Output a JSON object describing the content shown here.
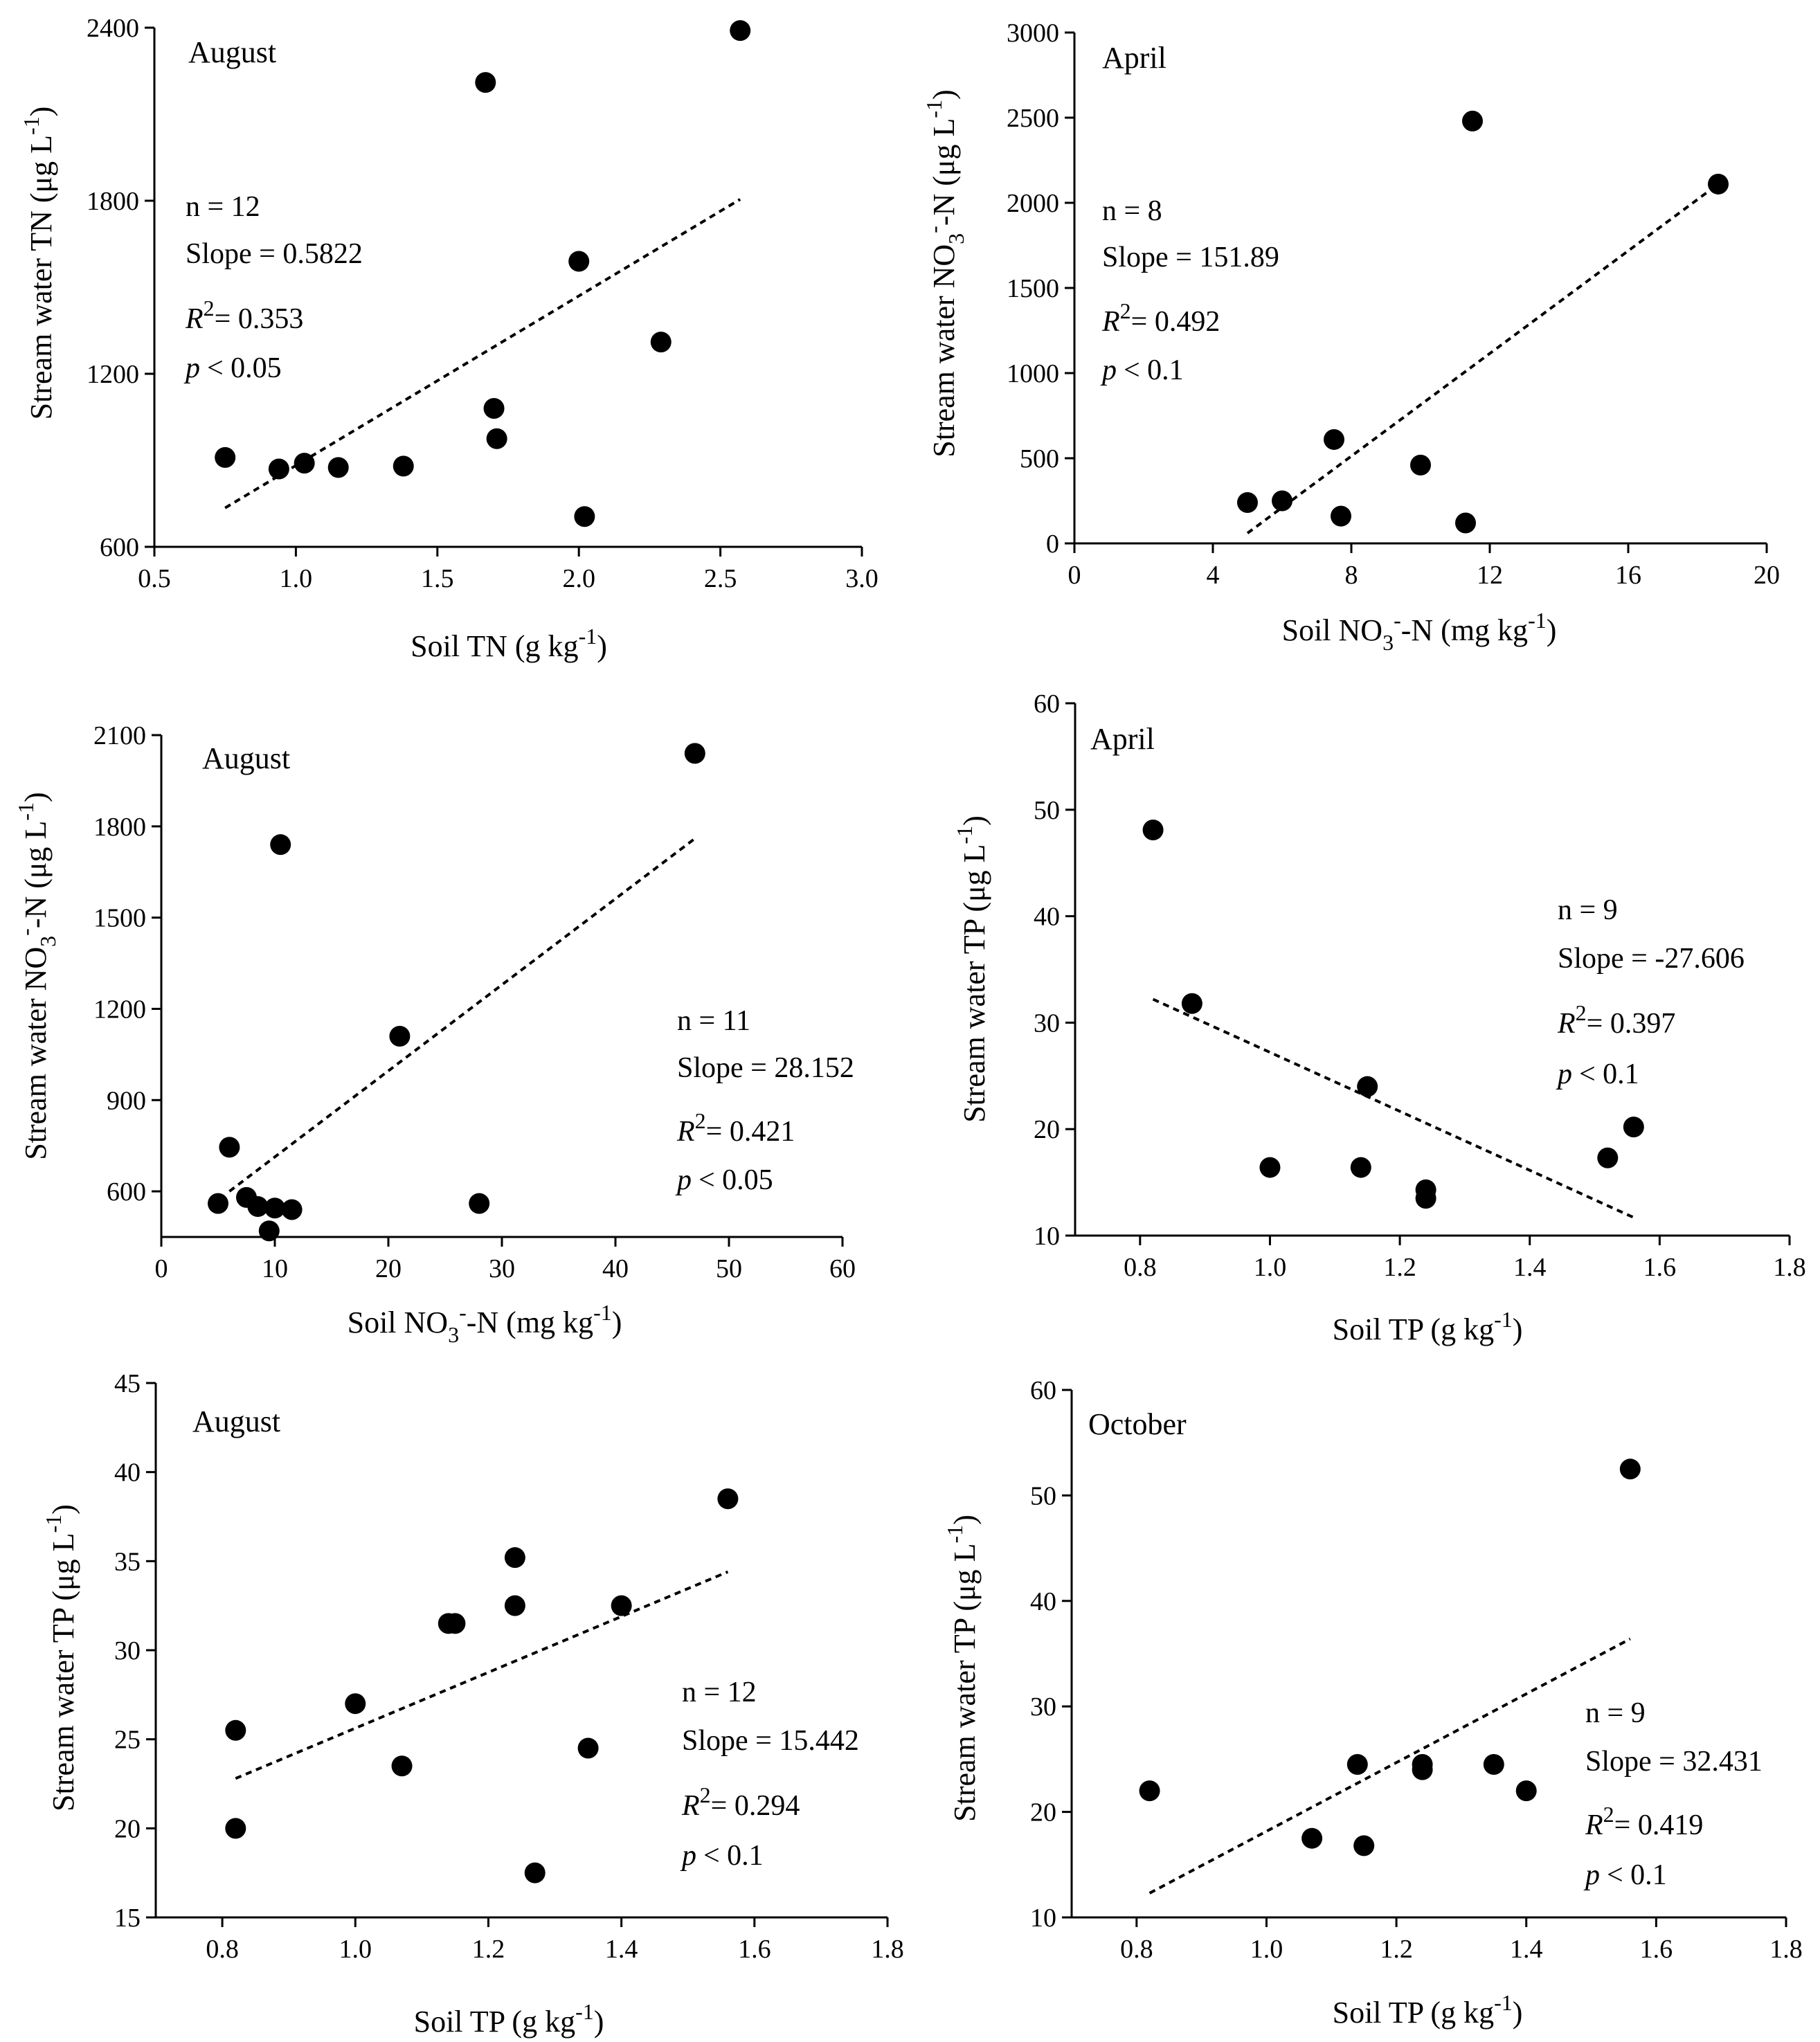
{
  "chart_data": [
    {
      "type": "scatter",
      "month": "August",
      "xlabel": "Soil TN (g kg",
      "ylabel": "Stream water TN (μg L",
      "xlim": [
        0.5,
        3.0
      ],
      "ylim": [
        600,
        2400
      ],
      "xticks": [
        "0.5",
        "1.0",
        "1.5",
        "2.0",
        "2.5",
        "3.0"
      ],
      "yticks": [
        "600",
        "1200",
        "1800",
        "2400"
      ],
      "points": [
        [
          0.75,
          910
        ],
        [
          0.94,
          870
        ],
        [
          1.03,
          890
        ],
        [
          1.15,
          875
        ],
        [
          1.38,
          880
        ],
        [
          1.67,
          2210
        ],
        [
          1.7,
          1080
        ],
        [
          1.71,
          975
        ],
        [
          2.0,
          1590
        ],
        [
          2.02,
          705
        ],
        [
          2.29,
          1310
        ],
        [
          2.57,
          2390
        ]
      ],
      "fit_line": [
        [
          0.75,
          735
        ],
        [
          2.57,
          1805
        ]
      ],
      "stats": {
        "n": "n = 12",
        "slope": "Slope = 0.5822",
        "r2": "= 0.353",
        "p": "< 0.05"
      }
    },
    {
      "type": "scatter",
      "month": "April",
      "xlabel": "Soil NO",
      "ylabel": "Stream water NO",
      "xlim": [
        0,
        20
      ],
      "ylim": [
        0,
        3000
      ],
      "xticks": [
        "0",
        "4",
        "8",
        "12",
        "16",
        "20"
      ],
      "yticks": [
        "0",
        "500",
        "1000",
        "1500",
        "2000",
        "2500",
        "3000"
      ],
      "points": [
        [
          5.0,
          240
        ],
        [
          6.0,
          250
        ],
        [
          7.5,
          610
        ],
        [
          7.7,
          160
        ],
        [
          10.0,
          460
        ],
        [
          11.3,
          120
        ],
        [
          11.5,
          2480
        ],
        [
          18.6,
          2110
        ]
      ],
      "fit_line": [
        [
          5.0,
          60
        ],
        [
          18.6,
          2110
        ]
      ],
      "stats": {
        "n": "n = 8",
        "slope": "Slope = 151.89",
        "r2": "= 0.492",
        "p": "< 0.1"
      }
    },
    {
      "type": "scatter",
      "month": "August",
      "xlabel": "Soil NO",
      "ylabel": "Stream water NO",
      "xlim": [
        0,
        60
      ],
      "ylim": [
        450,
        2100
      ],
      "xticks": [
        "0",
        "10",
        "20",
        "30",
        "40",
        "50",
        "60"
      ],
      "yticks": [
        "600",
        "900",
        "1200",
        "1500",
        "1800",
        "2100"
      ],
      "points": [
        [
          5,
          560
        ],
        [
          6,
          745
        ],
        [
          7.5,
          580
        ],
        [
          8.5,
          550
        ],
        [
          9.5,
          470
        ],
        [
          10,
          545
        ],
        [
          10.5,
          1740
        ],
        [
          11.5,
          540
        ],
        [
          21,
          1110
        ],
        [
          28,
          560
        ],
        [
          47,
          2040
        ]
      ],
      "fit_line": [
        [
          6,
          600
        ],
        [
          47,
          1760
        ]
      ],
      "stats": {
        "n": "n = 11",
        "slope": "Slope = 28.152",
        "r2": "= 0.421",
        "p": "< 0.05"
      }
    },
    {
      "type": "scatter",
      "month": "April",
      "xlabel": "Soil TP (g kg",
      "ylabel": "Stream water TP (μg L",
      "xlim": [
        0.7,
        1.8
      ],
      "ylim": [
        10,
        60
      ],
      "xticks": [
        "0.8",
        "1.0",
        "1.2",
        "1.4",
        "1.6",
        "1.8"
      ],
      "yticks": [
        "10",
        "20",
        "30",
        "40",
        "50",
        "60"
      ],
      "points": [
        [
          0.82,
          48.1
        ],
        [
          0.88,
          31.8
        ],
        [
          1.0,
          16.4
        ],
        [
          1.14,
          16.4
        ],
        [
          1.15,
          24.0
        ],
        [
          1.24,
          14.3
        ],
        [
          1.24,
          13.5
        ],
        [
          1.52,
          17.3
        ],
        [
          1.56,
          20.2
        ]
      ],
      "fit_line": [
        [
          0.82,
          32.2
        ],
        [
          1.56,
          11.7
        ]
      ],
      "stats": {
        "n": "n = 9",
        "slope": "Slope = -27.606",
        "r2": "= 0.397",
        "p": "< 0.1"
      }
    },
    {
      "type": "scatter",
      "month": "August",
      "xlabel": "Soil TP (g kg",
      "ylabel": "Stream water TP (μg L",
      "xlim": [
        0.7,
        1.8
      ],
      "ylim": [
        15,
        45
      ],
      "xticks": [
        "0.8",
        "1.0",
        "1.2",
        "1.4",
        "1.6",
        "1.8"
      ],
      "yticks": [
        "15",
        "20",
        "25",
        "30",
        "35",
        "40",
        "45"
      ],
      "points": [
        [
          0.82,
          25.5
        ],
        [
          0.82,
          20.0
        ],
        [
          1.0,
          27.0
        ],
        [
          1.07,
          23.5
        ],
        [
          1.14,
          31.5
        ],
        [
          1.15,
          31.5
        ],
        [
          1.24,
          35.2
        ],
        [
          1.24,
          32.5
        ],
        [
          1.27,
          17.5
        ],
        [
          1.35,
          24.5
        ],
        [
          1.4,
          32.5
        ],
        [
          1.56,
          38.5
        ]
      ],
      "fit_line": [
        [
          0.82,
          22.8
        ],
        [
          1.56,
          34.4
        ]
      ],
      "stats": {
        "n": "n = 12",
        "slope": "Slope = 15.442",
        "r2": "= 0.294",
        "p": "< 0.1"
      }
    },
    {
      "type": "scatter",
      "month": "October",
      "xlabel": "Soil TP (g kg",
      "ylabel": "Stream water TP (μg L",
      "xlim": [
        0.7,
        1.8
      ],
      "ylim": [
        10,
        60
      ],
      "xticks": [
        "0.8",
        "1.0",
        "1.2",
        "1.4",
        "1.6",
        "1.8"
      ],
      "yticks": [
        "10",
        "20",
        "30",
        "40",
        "50",
        "60"
      ],
      "points": [
        [
          0.82,
          22.0
        ],
        [
          1.07,
          17.5
        ],
        [
          1.14,
          24.5
        ],
        [
          1.15,
          16.8
        ],
        [
          1.24,
          24.0
        ],
        [
          1.24,
          24.5
        ],
        [
          1.35,
          24.5
        ],
        [
          1.4,
          22.0
        ],
        [
          1.56,
          52.5
        ]
      ],
      "fit_line": [
        [
          0.82,
          12.3
        ],
        [
          1.56,
          36.4
        ]
      ],
      "stats": {
        "n": "n = 9",
        "slope": "Slope = 32.431",
        "r2": "= 0.419",
        "p": "< 0.1"
      }
    }
  ],
  "labels": {
    "r2_letter": "R",
    "r2_exp": "2",
    "p_letter": "p",
    "sup_minus_one": "-1",
    "sub_three": "3",
    "sup_minus": "-",
    "close_paren": ")",
    "no3_y_tail": "-N (μg L",
    "no3_x_tail": "-N (mg kg"
  }
}
